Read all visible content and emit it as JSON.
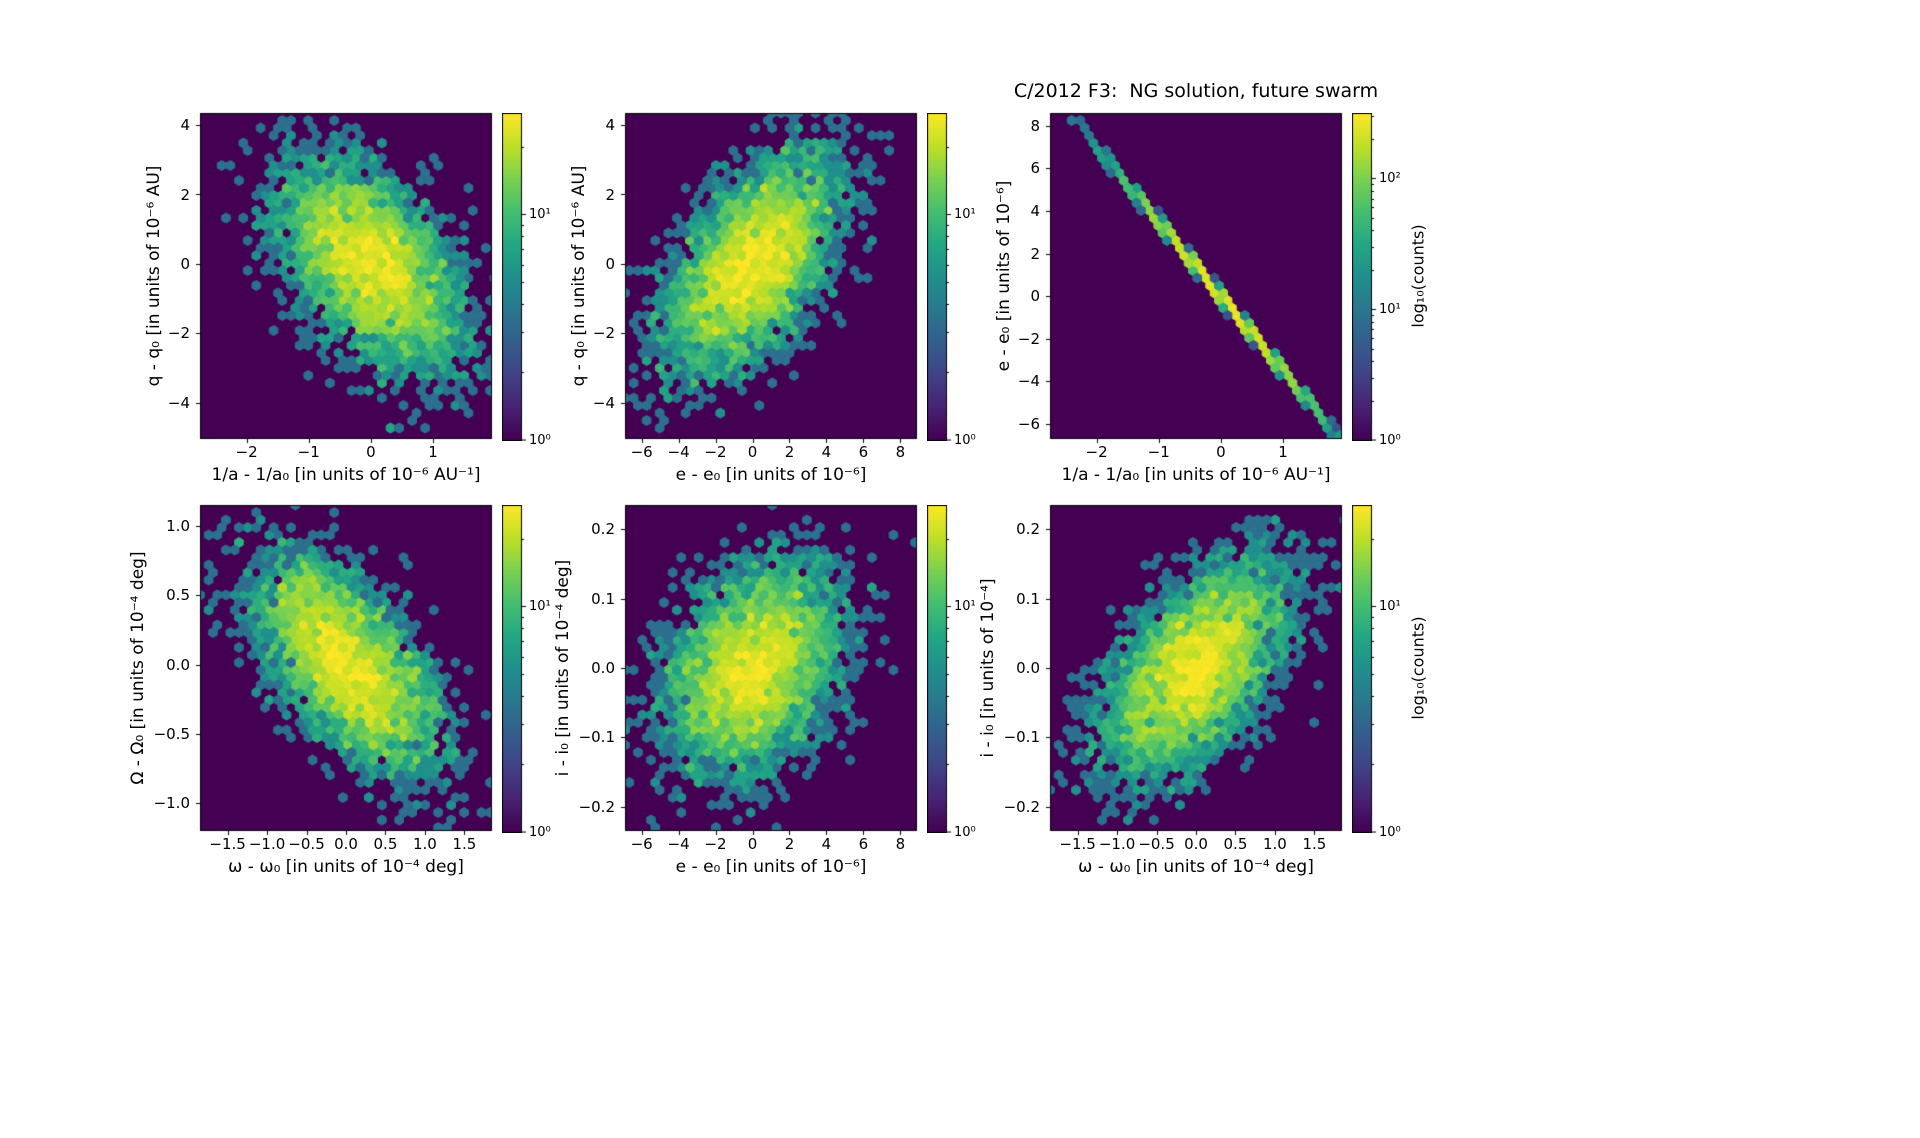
{
  "figure": {
    "background_color": "#ffffff",
    "colormap": "viridis",
    "colormap_min_color": "#440154",
    "colormap_max_color": "#fde725"
  },
  "chart_data": {
    "type": "heatmap",
    "subtype": "hexbin-density",
    "colorscale": "log10(counts)",
    "panels": [
      {
        "name": "q vs 1/a",
        "xlabel": "1/a - 1/a₀ [in units of 10⁻⁶ AU⁻¹]",
        "ylabel": "q - q₀ [in units of 10⁻⁶ AU]",
        "xlim": [
          -2.75,
          1.95
        ],
        "ylim": [
          -5.05,
          4.35
        ],
        "xticks": [
          {
            "v": -2,
            "label": "−2"
          },
          {
            "v": -1,
            "label": "−1"
          },
          {
            "v": 0,
            "label": "0"
          },
          {
            "v": 1,
            "label": "1"
          }
        ],
        "yticks": [
          {
            "v": -4,
            "label": "−4"
          },
          {
            "v": -2,
            "label": "−2"
          },
          {
            "v": 0,
            "label": "0"
          },
          {
            "v": 2,
            "label": "2"
          },
          {
            "v": 4,
            "label": "4"
          }
        ],
        "distribution": {
          "kind": "gauss2d",
          "n": 4500,
          "cx": 0,
          "cy": 0,
          "sx": 0.7,
          "sy": 1.45,
          "rho": -0.5,
          "seed": 11
        },
        "colorbar": {
          "log_max": 1.45,
          "color_floor": 0.85,
          "ticks": [
            {
              "exp": 0,
              "label": "10⁰"
            },
            {
              "exp": 1,
              "label": "10¹"
            }
          ],
          "label": ""
        }
      },
      {
        "name": "q vs e",
        "xlabel": "e - e₀ [in units of 10⁻⁶]",
        "ylabel": "q - q₀ [in units of 10⁻⁶ AU]",
        "xlim": [
          -6.9,
          8.9
        ],
        "ylim": [
          -5.05,
          4.35
        ],
        "xticks": [
          {
            "v": -6,
            "label": "−6"
          },
          {
            "v": -4,
            "label": "−4"
          },
          {
            "v": -2,
            "label": "−2"
          },
          {
            "v": 0,
            "label": "0"
          },
          {
            "v": 2,
            "label": "2"
          },
          {
            "v": 4,
            "label": "4"
          },
          {
            "v": 6,
            "label": "6"
          },
          {
            "v": 8,
            "label": "8"
          }
        ],
        "yticks": [
          {
            "v": -4,
            "label": "−4"
          },
          {
            "v": -2,
            "label": "−2"
          },
          {
            "v": 0,
            "label": "0"
          },
          {
            "v": 2,
            "label": "2"
          },
          {
            "v": 4,
            "label": "4"
          }
        ],
        "distribution": {
          "kind": "gauss2d",
          "n": 4500,
          "cx": 0,
          "cy": 0,
          "sx": 2.2,
          "sy": 1.45,
          "rho": 0.55,
          "seed": 22
        },
        "colorbar": {
          "log_max": 1.45,
          "color_floor": 0.85,
          "ticks": [
            {
              "exp": 0,
              "label": "10⁰"
            },
            {
              "exp": 1,
              "label": "10¹"
            }
          ],
          "label": ""
        }
      },
      {
        "name": "e vs 1/a",
        "title": "C/2012 F3:  NG solution, future swarm",
        "xlabel": "1/a - 1/a₀ [in units of 10⁻⁶ AU⁻¹]",
        "ylabel": "e - e₀ [in units of 10⁻⁶]",
        "xlim": [
          -2.75,
          1.95
        ],
        "ylim": [
          -6.7,
          8.6
        ],
        "xticks": [
          {
            "v": -2,
            "label": "−2"
          },
          {
            "v": -1,
            "label": "−1"
          },
          {
            "v": 0,
            "label": "0"
          },
          {
            "v": 1,
            "label": "1"
          }
        ],
        "yticks": [
          {
            "v": -6,
            "label": "−6"
          },
          {
            "v": -4,
            "label": "−4"
          },
          {
            "v": -2,
            "label": "−2"
          },
          {
            "v": 0,
            "label": "0"
          },
          {
            "v": 2,
            "label": "2"
          },
          {
            "v": 4,
            "label": "4"
          },
          {
            "v": 6,
            "label": "6"
          },
          {
            "v": 8,
            "label": "8"
          }
        ],
        "distribution": {
          "kind": "line",
          "n": 5200,
          "cx": 0,
          "sx": 0.75,
          "slope": -3.5,
          "intercept": 0,
          "noise": 0.07,
          "seed": 33
        },
        "colorbar": {
          "log_max": 2.5,
          "color_floor": 0.9,
          "ticks": [
            {
              "exp": 0,
              "label": "10⁰"
            },
            {
              "exp": 1,
              "label": "10¹"
            },
            {
              "exp": 2,
              "label": "10²"
            }
          ],
          "label": "log₁₀(counts)"
        }
      },
      {
        "name": "Omega vs omega",
        "xlabel": "ω - ω₀ [in units of 10⁻⁴ deg]",
        "ylabel": "Ω - Ω₀ [in units of 10⁻⁴ deg]",
        "xlim": [
          -1.85,
          1.85
        ],
        "ylim": [
          -1.2,
          1.15
        ],
        "xticks": [
          {
            "v": -1.5,
            "label": "−1.5"
          },
          {
            "v": -1.0,
            "label": "−1.0"
          },
          {
            "v": -0.5,
            "label": "−0.5"
          },
          {
            "v": 0.0,
            "label": "0.0"
          },
          {
            "v": 0.5,
            "label": "0.5"
          },
          {
            "v": 1.0,
            "label": "1.0"
          },
          {
            "v": 1.5,
            "label": "1.5"
          }
        ],
        "yticks": [
          {
            "v": -1.0,
            "label": "−1.0"
          },
          {
            "v": -0.5,
            "label": "−0.5"
          },
          {
            "v": 0.0,
            "label": "0.0"
          },
          {
            "v": 0.5,
            "label": "0.5"
          },
          {
            "v": 1.0,
            "label": "1.0"
          }
        ],
        "distribution": {
          "kind": "gauss2d",
          "n": 4500,
          "cx": 0,
          "cy": 0,
          "sx": 0.55,
          "sy": 0.37,
          "rho": -0.6,
          "seed": 44
        },
        "colorbar": {
          "log_max": 1.45,
          "color_floor": 0.85,
          "ticks": [
            {
              "exp": 0,
              "label": "10⁰"
            },
            {
              "exp": 1,
              "label": "10¹"
            }
          ],
          "label": ""
        }
      },
      {
        "name": "i vs e",
        "xlabel": "e - e₀ [in units of 10⁻⁶]",
        "ylabel": "i - i₀ [in units of 10⁻⁴ deg]",
        "xlim": [
          -6.9,
          8.9
        ],
        "ylim": [
          -0.235,
          0.235
        ],
        "xticks": [
          {
            "v": -6,
            "label": "−6"
          },
          {
            "v": -4,
            "label": "−4"
          },
          {
            "v": -2,
            "label": "−2"
          },
          {
            "v": 0,
            "label": "0"
          },
          {
            "v": 2,
            "label": "2"
          },
          {
            "v": 4,
            "label": "4"
          },
          {
            "v": 6,
            "label": "6"
          },
          {
            "v": 8,
            "label": "8"
          }
        ],
        "yticks": [
          {
            "v": -0.2,
            "label": "−0.2"
          },
          {
            "v": -0.1,
            "label": "−0.1"
          },
          {
            "v": 0.0,
            "label": "0.0"
          },
          {
            "v": 0.1,
            "label": "0.1"
          },
          {
            "v": 0.2,
            "label": "0.2"
          }
        ],
        "distribution": {
          "kind": "gauss2d",
          "n": 4500,
          "cx": 0,
          "cy": 0,
          "sx": 2.2,
          "sy": 0.072,
          "rho": 0.3,
          "seed": 55
        },
        "colorbar": {
          "log_max": 1.45,
          "color_floor": 0.85,
          "ticks": [
            {
              "exp": 0,
              "label": "10⁰"
            },
            {
              "exp": 1,
              "label": "10¹"
            }
          ],
          "label": ""
        }
      },
      {
        "name": "i vs omega",
        "xlabel": "ω - ω₀ [in units of 10⁻⁴ deg]",
        "ylabel": "i - i₀ [in units of 10⁻⁴]",
        "xlim": [
          -1.85,
          1.85
        ],
        "ylim": [
          -0.235,
          0.235
        ],
        "xticks": [
          {
            "v": -1.5,
            "label": "−1.5"
          },
          {
            "v": -1.0,
            "label": "−1.0"
          },
          {
            "v": -0.5,
            "label": "−0.5"
          },
          {
            "v": 0.0,
            "label": "0.0"
          },
          {
            "v": 0.5,
            "label": "0.5"
          },
          {
            "v": 1.0,
            "label": "1.0"
          },
          {
            "v": 1.5,
            "label": "1.5"
          }
        ],
        "yticks": [
          {
            "v": -0.2,
            "label": "−0.2"
          },
          {
            "v": -0.1,
            "label": "−0.1"
          },
          {
            "v": 0.0,
            "label": "0.0"
          },
          {
            "v": 0.1,
            "label": "0.1"
          },
          {
            "v": 0.2,
            "label": "0.2"
          }
        ],
        "distribution": {
          "kind": "gauss2d",
          "n": 4500,
          "cx": 0,
          "cy": 0,
          "sx": 0.55,
          "sy": 0.072,
          "rho": 0.55,
          "seed": 66
        },
        "colorbar": {
          "log_max": 1.45,
          "color_floor": 0.85,
          "ticks": [
            {
              "exp": 0,
              "label": "10⁰"
            },
            {
              "exp": 1,
              "label": "10¹"
            }
          ],
          "label": "log₁₀(counts)"
        }
      }
    ]
  }
}
